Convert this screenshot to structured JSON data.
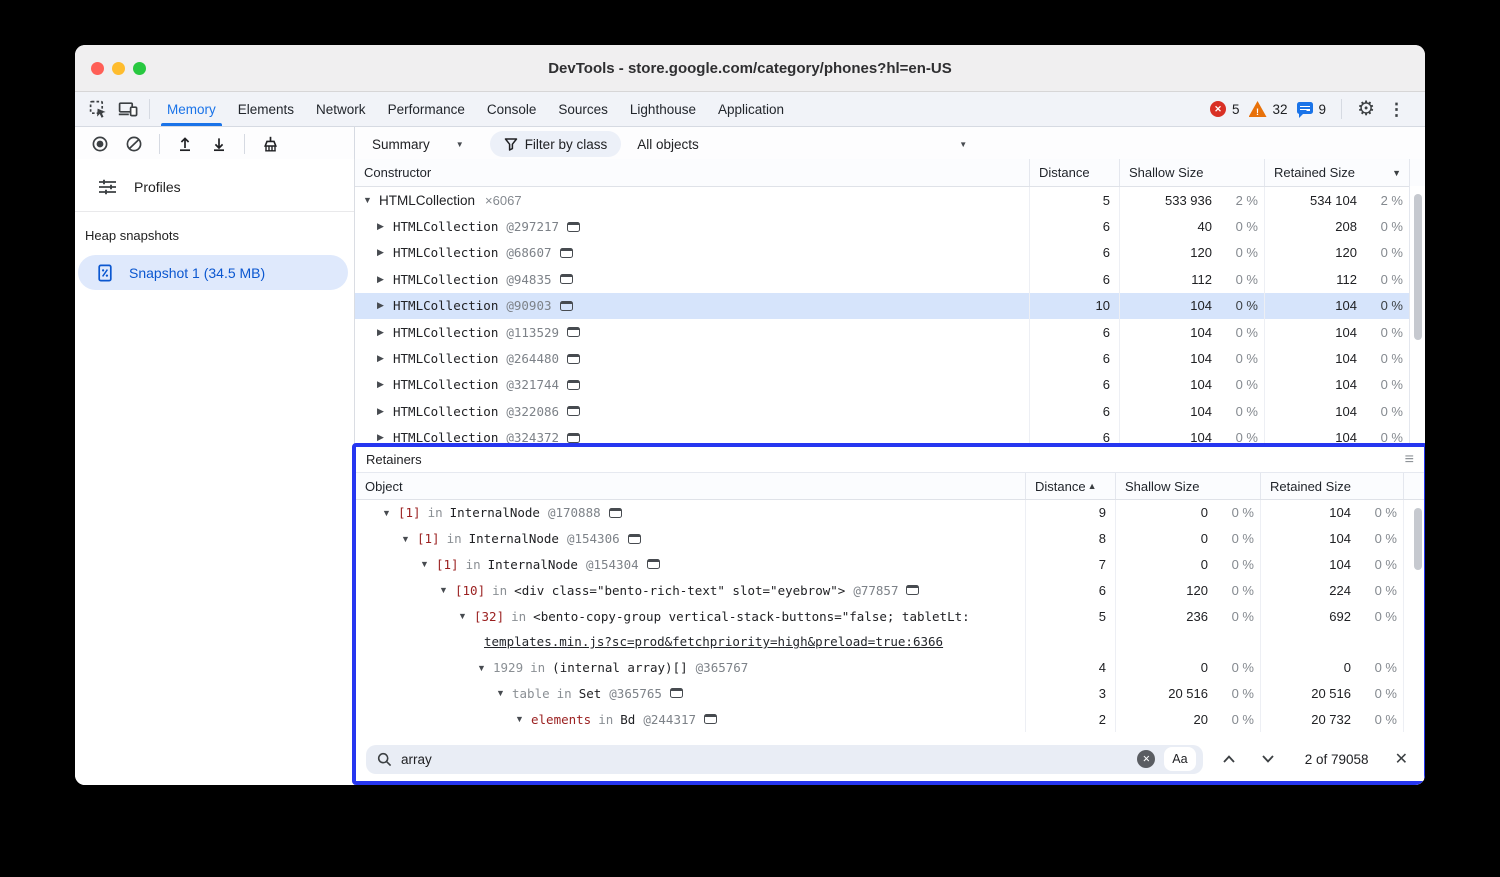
{
  "window": {
    "title": "DevTools - store.google.com/category/phones?hl=en-US"
  },
  "tabs": {
    "items": [
      "Memory",
      "Elements",
      "Network",
      "Performance",
      "Console",
      "Sources",
      "Lighthouse",
      "Application"
    ],
    "active": "Memory",
    "error_count": "5",
    "warning_count": "32",
    "message_count": "9"
  },
  "toolbar": {
    "summary_label": "Summary",
    "filter_label": "Filter by class",
    "objects_label": "All objects"
  },
  "sidebar": {
    "profiles_label": "Profiles",
    "section_label": "Heap snapshots",
    "snapshot_label": "Snapshot 1 (34.5 MB)"
  },
  "constructors": {
    "columns": {
      "constructor": "Constructor",
      "distance": "Distance",
      "shallow": "Shallow Size",
      "retained": "Retained Size"
    },
    "rows": [
      {
        "kind": "group",
        "expanded": true,
        "level": 0,
        "name": "HTMLCollection",
        "count": "×6067",
        "distance": "5",
        "shallow": "533 936",
        "shallow_pct": "2 %",
        "retained": "534 104",
        "retained_pct": "2 %"
      },
      {
        "kind": "instance",
        "expanded": false,
        "level": 1,
        "name": "HTMLCollection",
        "id": "@297217",
        "reveal": true,
        "distance": "6",
        "shallow": "40",
        "shallow_pct": "0 %",
        "retained": "208",
        "retained_pct": "0 %"
      },
      {
        "kind": "instance",
        "expanded": false,
        "level": 1,
        "name": "HTMLCollection",
        "id": "@68607",
        "reveal": true,
        "distance": "6",
        "shallow": "120",
        "shallow_pct": "0 %",
        "retained": "120",
        "retained_pct": "0 %"
      },
      {
        "kind": "instance",
        "expanded": false,
        "level": 1,
        "name": "HTMLCollection",
        "id": "@94835",
        "reveal": true,
        "distance": "6",
        "shallow": "112",
        "shallow_pct": "0 %",
        "retained": "112",
        "retained_pct": "0 %"
      },
      {
        "kind": "instance",
        "expanded": false,
        "level": 1,
        "name": "HTMLCollection",
        "id": "@90903",
        "reveal": true,
        "selected": true,
        "distance": "10",
        "shallow": "104",
        "shallow_pct": "0 %",
        "retained": "104",
        "retained_pct": "0 %"
      },
      {
        "kind": "instance",
        "expanded": false,
        "level": 1,
        "name": "HTMLCollection",
        "id": "@113529",
        "reveal": true,
        "distance": "6",
        "shallow": "104",
        "shallow_pct": "0 %",
        "retained": "104",
        "retained_pct": "0 %"
      },
      {
        "kind": "instance",
        "expanded": false,
        "level": 1,
        "name": "HTMLCollection",
        "id": "@264480",
        "reveal": true,
        "distance": "6",
        "shallow": "104",
        "shallow_pct": "0 %",
        "retained": "104",
        "retained_pct": "0 %"
      },
      {
        "kind": "instance",
        "expanded": false,
        "level": 1,
        "name": "HTMLCollection",
        "id": "@321744",
        "reveal": true,
        "distance": "6",
        "shallow": "104",
        "shallow_pct": "0 %",
        "retained": "104",
        "retained_pct": "0 %"
      },
      {
        "kind": "instance",
        "expanded": false,
        "level": 1,
        "name": "HTMLCollection",
        "id": "@322086",
        "reveal": true,
        "distance": "6",
        "shallow": "104",
        "shallow_pct": "0 %",
        "retained": "104",
        "retained_pct": "0 %"
      },
      {
        "kind": "instance",
        "expanded": false,
        "level": 1,
        "name": "HTMLCollection",
        "id": "@324372",
        "reveal": true,
        "distance": "6",
        "shallow": "104",
        "shallow_pct": "0 %",
        "retained": "104",
        "retained_pct": "0 %"
      }
    ]
  },
  "retainers": {
    "title": "Retainers",
    "in_label": "in",
    "columns": {
      "object": "Object",
      "distance": "Distance",
      "shallow": "Shallow Size",
      "retained": "Retained Size"
    },
    "rows": [
      {
        "level": 0,
        "edge": "[1]",
        "edge_style": "red",
        "target": "InternalNode",
        "id": "@170888",
        "reveal": true,
        "distance": "9",
        "shallow": "0",
        "shallow_pct": "0 %",
        "retained": "104",
        "retained_pct": "0 %"
      },
      {
        "level": 1,
        "edge": "[1]",
        "edge_style": "red",
        "target": "InternalNode",
        "id": "@154306",
        "reveal": true,
        "distance": "8",
        "shallow": "0",
        "shallow_pct": "0 %",
        "retained": "104",
        "retained_pct": "0 %"
      },
      {
        "level": 2,
        "edge": "[1]",
        "edge_style": "red",
        "target": "InternalNode",
        "id": "@154304",
        "reveal": true,
        "distance": "7",
        "shallow": "0",
        "shallow_pct": "0 %",
        "retained": "104",
        "retained_pct": "0 %"
      },
      {
        "level": 3,
        "edge": "[10]",
        "edge_style": "red",
        "target": "<div class=\"bento-rich-text\" slot=\"eyebrow\">",
        "id": "@77857",
        "reveal": true,
        "distance": "6",
        "shallow": "120",
        "shallow_pct": "0 %",
        "retained": "224",
        "retained_pct": "0 %"
      },
      {
        "level": 4,
        "edge": "[32]",
        "edge_style": "red",
        "target": "<bento-copy-group vertical-stack-buttons=\"false; tabletLt:",
        "id": "",
        "reveal": false,
        "distance": "5",
        "shallow": "236",
        "shallow_pct": "0 %",
        "retained": "692",
        "retained_pct": "0 %"
      },
      {
        "link": "templates.min.js?sc=prod&fetchpriority=high&preload=true:6366"
      },
      {
        "level": 5,
        "edge": "1929",
        "edge_style": "gray",
        "target": "(internal array)[]",
        "id": "@365767",
        "reveal": false,
        "distance": "4",
        "shallow": "0",
        "shallow_pct": "0 %",
        "retained": "0",
        "retained_pct": "0 %"
      },
      {
        "level": 6,
        "edge": "table",
        "edge_style": "gray",
        "target": "Set",
        "id": "@365765",
        "reveal": true,
        "distance": "3",
        "shallow": "20 516",
        "shallow_pct": "0 %",
        "retained": "20 516",
        "retained_pct": "0 %"
      },
      {
        "level": 7,
        "edge": "elements",
        "edge_style": "red",
        "target": "Bd",
        "id": "@244317",
        "reveal": true,
        "distance": "2",
        "shallow": "20",
        "shallow_pct": "0 %",
        "retained": "20 732",
        "retained_pct": "0 %"
      }
    ]
  },
  "search": {
    "query": "array",
    "match_case_label": "Aa",
    "results": "2 of 79058"
  },
  "icons": {
    "gear": "⚙",
    "more": "⋮",
    "menu": "≡",
    "close": "✕",
    "error_x": "✕",
    "warn_mark": "!",
    "twisty_expanded": "▼",
    "twisty_collapsed": "▶",
    "sort_desc": "▼",
    "sort_asc": "▲",
    "dd_arrow": "▾"
  }
}
